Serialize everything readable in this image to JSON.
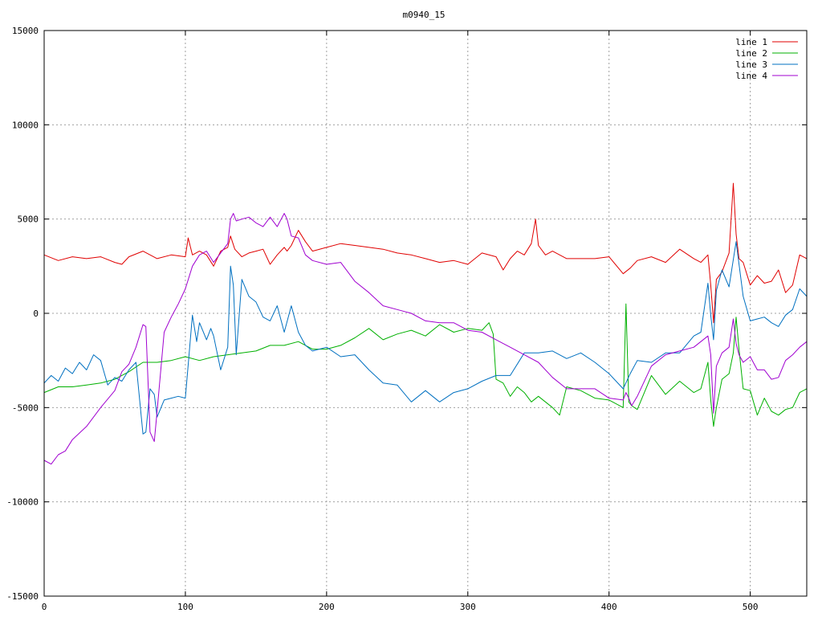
{
  "chart_data": {
    "type": "line",
    "title": "m0940_15",
    "xlabel": "",
    "ylabel": "",
    "xlim": [
      0,
      540
    ],
    "ylim": [
      -15000,
      15000
    ],
    "x_ticks": [
      0,
      100,
      200,
      300,
      400,
      500
    ],
    "y_ticks": [
      -15000,
      -10000,
      -5000,
      0,
      5000,
      10000,
      15000
    ],
    "x_tick_labels": [
      "0",
      "100",
      "200",
      "300",
      "400",
      "500"
    ],
    "y_tick_labels": [
      "-15000",
      "-10000",
      "-5000",
      "0",
      "5000",
      "10000",
      "15000"
    ],
    "grid": true,
    "legend_position": "top-right",
    "series": [
      {
        "name": "line 1",
        "color": "#e00000",
        "x": [
          0,
          10,
          20,
          30,
          40,
          50,
          55,
          60,
          70,
          80,
          90,
          100,
          102,
          105,
          110,
          115,
          120,
          125,
          130,
          132,
          135,
          140,
          145,
          150,
          155,
          160,
          165,
          170,
          172,
          175,
          180,
          185,
          190,
          200,
          210,
          220,
          230,
          240,
          250,
          260,
          270,
          280,
          290,
          300,
          310,
          320,
          325,
          330,
          335,
          340,
          345,
          348,
          350,
          355,
          360,
          370,
          380,
          390,
          400,
          410,
          415,
          420,
          430,
          440,
          450,
          460,
          465,
          470,
          472,
          474,
          476,
          480,
          485,
          488,
          490,
          492,
          495,
          500,
          505,
          510,
          515,
          520,
          525,
          530,
          535,
          540
        ],
        "values": [
          3100,
          2800,
          3000,
          2900,
          3000,
          2700,
          2600,
          3000,
          3300,
          2900,
          3100,
          3000,
          4000,
          3100,
          3300,
          3100,
          2500,
          3300,
          3500,
          4100,
          3400,
          3000,
          3200,
          3300,
          3400,
          2600,
          3100,
          3500,
          3300,
          3600,
          4400,
          3800,
          3300,
          3500,
          3700,
          3600,
          3500,
          3400,
          3200,
          3100,
          2900,
          2700,
          2800,
          2600,
          3200,
          3000,
          2300,
          2900,
          3300,
          3100,
          3700,
          5000,
          3600,
          3100,
          3300,
          2900,
          2900,
          2900,
          3000,
          2100,
          2400,
          2800,
          3000,
          2700,
          3400,
          2900,
          2700,
          3100,
          1500,
          -500,
          1800,
          2200,
          3200,
          6900,
          4200,
          2900,
          2700,
          1500,
          2000,
          1600,
          1700,
          2300,
          1100,
          1500,
          3100,
          2900
        ]
      },
      {
        "name": "line 2",
        "color": "#00b000",
        "x": [
          0,
          10,
          20,
          30,
          40,
          50,
          60,
          70,
          80,
          90,
          100,
          110,
          120,
          130,
          140,
          150,
          160,
          170,
          180,
          190,
          200,
          210,
          220,
          230,
          240,
          250,
          260,
          270,
          280,
          290,
          300,
          310,
          315,
          318,
          320,
          325,
          330,
          335,
          340,
          345,
          350,
          355,
          360,
          365,
          370,
          380,
          390,
          400,
          410,
          412,
          414,
          416,
          420,
          430,
          440,
          450,
          460,
          465,
          470,
          472,
          474,
          476,
          480,
          485,
          488,
          490,
          492,
          495,
          500,
          505,
          510,
          515,
          520,
          525,
          530,
          535,
          540
        ],
        "values": [
          -4200,
          -3900,
          -3900,
          -3800,
          -3700,
          -3500,
          -3100,
          -2600,
          -2600,
          -2500,
          -2300,
          -2500,
          -2300,
          -2200,
          -2100,
          -2000,
          -1700,
          -1700,
          -1500,
          -1900,
          -1900,
          -1700,
          -1300,
          -800,
          -1400,
          -1100,
          -900,
          -1200,
          -600,
          -1000,
          -800,
          -900,
          -500,
          -1100,
          -3500,
          -3700,
          -4400,
          -3900,
          -4200,
          -4700,
          -4400,
          -4700,
          -5000,
          -5400,
          -3900,
          -4100,
          -4500,
          -4600,
          -5000,
          500,
          -4700,
          -4900,
          -5100,
          -3300,
          -4300,
          -3600,
          -4200,
          -4000,
          -2600,
          -4600,
          -6000,
          -5000,
          -3500,
          -3200,
          -2100,
          -200,
          -1900,
          -4000,
          -4100,
          -5400,
          -4500,
          -5200,
          -5400,
          -5100,
          -5000,
          -4200,
          -4000
        ]
      },
      {
        "name": "line 3",
        "color": "#0070c0",
        "x": [
          0,
          5,
          10,
          15,
          20,
          25,
          30,
          35,
          40,
          45,
          50,
          55,
          60,
          65,
          70,
          72,
          75,
          78,
          80,
          85,
          90,
          95,
          100,
          105,
          108,
          110,
          115,
          118,
          120,
          125,
          130,
          132,
          134,
          136,
          140,
          145,
          150,
          155,
          160,
          165,
          170,
          175,
          180,
          185,
          190,
          200,
          210,
          220,
          230,
          240,
          250,
          260,
          270,
          280,
          290,
          300,
          310,
          320,
          330,
          340,
          350,
          360,
          370,
          380,
          390,
          400,
          410,
          415,
          420,
          430,
          440,
          450,
          460,
          465,
          470,
          472,
          474,
          476,
          480,
          485,
          490,
          495,
          500,
          505,
          510,
          515,
          520,
          525,
          530,
          535,
          540
        ],
        "values": [
          -3700,
          -3300,
          -3600,
          -2900,
          -3200,
          -2600,
          -3000,
          -2200,
          -2500,
          -3800,
          -3400,
          -3600,
          -3000,
          -2600,
          -6400,
          -6300,
          -4000,
          -4300,
          -5500,
          -4600,
          -4500,
          -4400,
          -4500,
          -100,
          -1500,
          -500,
          -1400,
          -800,
          -1200,
          -3000,
          -1800,
          2500,
          1500,
          -2200,
          1800,
          900,
          600,
          -200,
          -400,
          400,
          -1000,
          400,
          -1000,
          -1700,
          -2000,
          -1800,
          -2300,
          -2200,
          -3000,
          -3700,
          -3800,
          -4700,
          -4100,
          -4700,
          -4200,
          -4000,
          -3600,
          -3300,
          -3300,
          -2100,
          -2100,
          -2000,
          -2400,
          -2100,
          -2600,
          -3200,
          -4000,
          -3200,
          -2500,
          -2600,
          -2100,
          -2100,
          -1200,
          -1000,
          1600,
          -100,
          -1400,
          1200,
          2300,
          1400,
          3800,
          900,
          -400,
          -300,
          -200,
          -500,
          -700,
          -100,
          200,
          1300,
          900
        ]
      },
      {
        "name": "line 4",
        "color": "#a000d0",
        "x": [
          0,
          5,
          10,
          15,
          20,
          30,
          40,
          50,
          55,
          60,
          65,
          70,
          72,
          75,
          78,
          80,
          85,
          90,
          95,
          100,
          105,
          110,
          115,
          120,
          125,
          130,
          132,
          134,
          136,
          140,
          145,
          150,
          155,
          160,
          165,
          170,
          172,
          175,
          180,
          185,
          190,
          200,
          210,
          220,
          230,
          240,
          250,
          260,
          270,
          280,
          290,
          300,
          310,
          320,
          330,
          340,
          350,
          360,
          370,
          380,
          390,
          400,
          410,
          412,
          414,
          416,
          420,
          430,
          440,
          450,
          460,
          465,
          470,
          472,
          474,
          476,
          480,
          485,
          488,
          490,
          492,
          495,
          500,
          505,
          510,
          515,
          520,
          525,
          530,
          535,
          540
        ],
        "values": [
          -7800,
          -8000,
          -7500,
          -7300,
          -6700,
          -6000,
          -5000,
          -4100,
          -3100,
          -2700,
          -1800,
          -600,
          -700,
          -6300,
          -6800,
          -5200,
          -1000,
          -200,
          500,
          1300,
          2500,
          3100,
          3300,
          2700,
          3200,
          3700,
          5000,
          5300,
          4900,
          5000,
          5100,
          4800,
          4600,
          5100,
          4600,
          5300,
          5000,
          4100,
          4000,
          3100,
          2800,
          2600,
          2700,
          1700,
          1100,
          400,
          200,
          0,
          -400,
          -500,
          -500,
          -900,
          -1000,
          -1400,
          -1800,
          -2200,
          -2600,
          -3400,
          -4000,
          -4000,
          -4000,
          -4500,
          -4600,
          -4200,
          -4500,
          -4900,
          -4400,
          -2800,
          -2200,
          -2000,
          -1800,
          -1500,
          -1200,
          -2200,
          -5300,
          -2800,
          -2100,
          -1800,
          -300,
          -1600,
          -2200,
          -2600,
          -2300,
          -3000,
          -3000,
          -3500,
          -3400,
          -2500,
          -2200,
          -1800,
          -1500
        ]
      }
    ]
  }
}
